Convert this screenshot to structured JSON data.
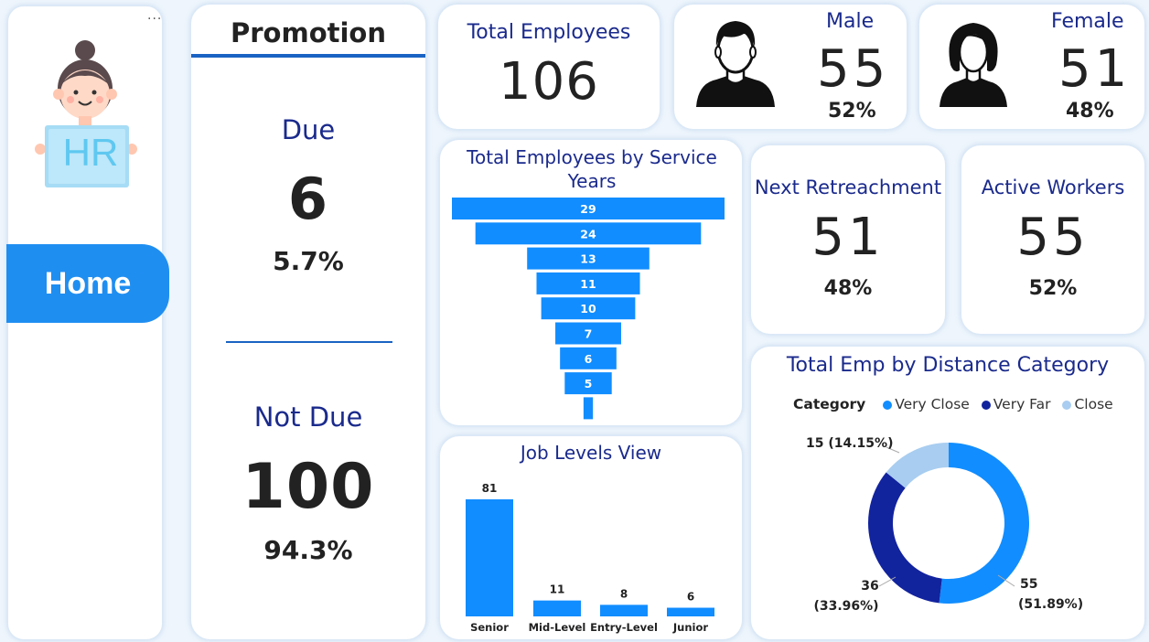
{
  "sidebar": {
    "menu_dots": "...",
    "logo_text": "HR",
    "home_label": "Home"
  },
  "promotion": {
    "title": "Promotion",
    "due_label": "Due",
    "due_value": "6",
    "due_pct": "5.7%",
    "not_due_label": "Not Due",
    "not_due_value": "100",
    "not_due_pct": "94.3%"
  },
  "total_employees": {
    "title": "Total Employees",
    "value": "106"
  },
  "male": {
    "title": "Male",
    "value": "55",
    "pct": "52%"
  },
  "female": {
    "title": "Female",
    "value": "51",
    "pct": "48%"
  },
  "next_retreachment": {
    "title": "Next Retreachment",
    "value": "51",
    "pct": "48%"
  },
  "active_workers": {
    "title": "Active Workers",
    "value": "55",
    "pct": "52%"
  },
  "colors": {
    "accent": "#1f8ef1",
    "navy": "#1a2a8c",
    "bar": "#118dff",
    "very_close": "#118dff",
    "very_far": "#12239e",
    "close": "#a8cdf0"
  },
  "chart_data": [
    {
      "type": "bar",
      "orientation": "horizontal-funnel",
      "title": "Total Employees by Service Years",
      "values": [
        29,
        24,
        13,
        11,
        10,
        7,
        6,
        5,
        1
      ],
      "labels": [
        "29",
        "24",
        "13",
        "11",
        "10",
        "7",
        "6",
        "5",
        ""
      ]
    },
    {
      "type": "bar",
      "title": "Job Levels View",
      "categories": [
        "Senior",
        "Mid-Level",
        "Entry-Level",
        "Junior"
      ],
      "values": [
        81,
        11,
        8,
        6
      ],
      "grid": false
    },
    {
      "type": "pie",
      "variant": "donut",
      "title": "Total Emp by Distance Category",
      "legend_title": "Category",
      "legend_position": "top",
      "categories": [
        "Very Close",
        "Very Far",
        "Close"
      ],
      "values": [
        55,
        36,
        15
      ],
      "labels": [
        {
          "value": "55",
          "pct": "(51.89%)"
        },
        {
          "value": "36",
          "pct": "(33.96%)"
        },
        {
          "value": "15",
          "pct": "(14.15%)"
        }
      ]
    }
  ]
}
